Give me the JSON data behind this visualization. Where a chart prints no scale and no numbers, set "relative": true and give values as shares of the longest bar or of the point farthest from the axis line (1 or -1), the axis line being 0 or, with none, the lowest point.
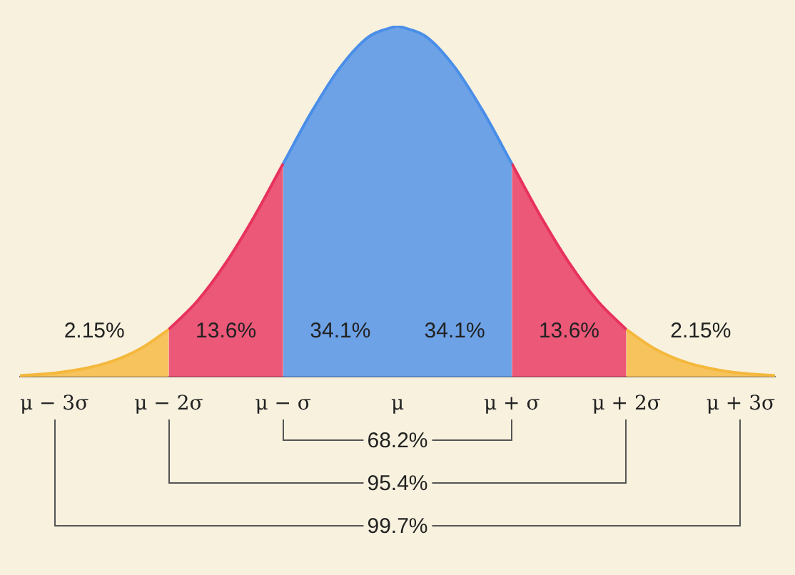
{
  "chart_data": {
    "type": "area",
    "relative": true,
    "xlim": [
      -3.3,
      3.3
    ],
    "xticks": [
      {
        "value": -3,
        "label": "μ − 3σ"
      },
      {
        "value": -2,
        "label": "μ − 2σ"
      },
      {
        "value": -1,
        "label": "μ − σ"
      },
      {
        "value": 0,
        "label": "μ"
      },
      {
        "value": 1,
        "label": "μ + σ"
      },
      {
        "value": 2,
        "label": "μ + 2σ"
      },
      {
        "value": 3,
        "label": "μ + 3σ"
      }
    ],
    "series": [
      {
        "color": "#f5b83c",
        "x": [
          -3.3,
          -3,
          -2.75,
          -2.5,
          -2.25,
          -2
        ],
        "values": [
          0.004,
          0.011,
          0.023,
          0.044,
          0.08,
          0.135
        ]
      },
      {
        "color": "#e8325e",
        "x": [
          -2,
          -1.75,
          -1.5,
          -1.25,
          -1
        ],
        "values": [
          0.135,
          0.216,
          0.325,
          0.458,
          0.607
        ]
      },
      {
        "color": "#4a8ee8",
        "x": [
          -1,
          -0.75,
          -0.5,
          -0.25,
          0
        ],
        "values": [
          0.607,
          0.755,
          0.882,
          0.969,
          1
        ]
      },
      {
        "color": "#4a8ee8",
        "x": [
          0,
          0.25,
          0.5,
          0.75,
          1
        ],
        "values": [
          1,
          0.969,
          0.882,
          0.755,
          0.607
        ]
      },
      {
        "color": "#e8325e",
        "x": [
          1,
          1.25,
          1.5,
          1.75,
          2
        ],
        "values": [
          0.607,
          0.458,
          0.325,
          0.216,
          0.135
        ]
      },
      {
        "color": "#f5b83c",
        "x": [
          2,
          2.25,
          2.5,
          2.75,
          3,
          3.3
        ],
        "values": [
          0.135,
          0.08,
          0.044,
          0.023,
          0.011,
          0.004
        ]
      }
    ],
    "annotations": [
      "2.15%",
      "13.6%",
      "34.1%",
      "34.1%",
      "13.6%",
      "2.15%",
      "68.2%",
      "95.4%",
      "99.7%"
    ]
  }
}
